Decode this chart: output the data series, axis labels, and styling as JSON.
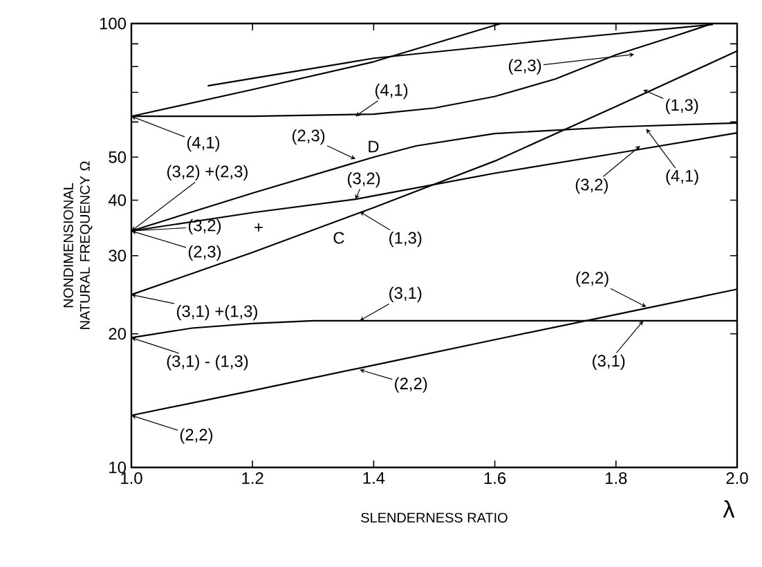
{
  "chart_data": {
    "type": "line",
    "xlabel": "SLENDERNESS RATIO",
    "ylabel": "NONDIMENSIONAL NATURAL FREQUENCY Ω",
    "log": "y",
    "grid": false,
    "xlim": [
      1.0,
      2.0
    ],
    "ylim": [
      10,
      100
    ],
    "xticks": [
      {
        "value": 1.0,
        "label": "1.0"
      },
      {
        "value": 1.2,
        "label": "1.2"
      },
      {
        "value": 1.4,
        "label": "1.4"
      },
      {
        "value": 1.6,
        "label": "1.6"
      },
      {
        "value": 1.8,
        "label": "1.8"
      },
      {
        "value": 2.0,
        "label": "2.0"
      }
    ],
    "yticks": [
      10,
      20,
      30,
      40,
      50,
      {
        "value": 60,
        "label": null
      },
      {
        "value": 70,
        "label": null
      },
      {
        "value": 80,
        "label": null
      },
      {
        "value": 90,
        "label": null
      },
      100
    ],
    "series": [
      {
        "color": "#000000",
        "x": [
          1.0,
          1.2,
          1.4,
          1.6,
          1.8,
          2.0
        ],
        "values": [
          13.1,
          14.9,
          17.0,
          19.4,
          22.1,
          25.2
        ]
      },
      {
        "color": "#000000",
        "x": [
          1.0,
          1.1,
          1.2,
          1.3,
          1.5,
          1.7,
          2.0
        ],
        "values": [
          19.6,
          20.6,
          21.1,
          21.4,
          21.4,
          21.4,
          21.4
        ]
      },
      {
        "color": "#000000",
        "x": [
          1.0,
          1.2,
          1.4,
          1.6,
          1.8,
          2.0
        ],
        "values": [
          24.5,
          30.5,
          38.5,
          49,
          65,
          86.7
        ]
      },
      {
        "color": "#000000",
        "x": [
          1.0,
          1.2,
          1.37,
          1.6,
          1.8,
          2.0
        ],
        "values": [
          34.1,
          37.5,
          40.2,
          46,
          51,
          56.7
        ]
      },
      {
        "color": "#000000",
        "x": [
          1.0,
          1.2,
          1.4,
          1.47,
          1.6,
          1.8,
          2.0
        ],
        "values": [
          34.1,
          41.5,
          50,
          53,
          56.5,
          58.5,
          59.7
        ]
      },
      {
        "color": "#000000",
        "x": [
          1.0,
          1.2,
          1.4,
          1.5,
          1.6,
          1.7,
          1.8,
          1.9,
          1.96
        ],
        "values": [
          61.8,
          61.8,
          62.5,
          64.5,
          68.5,
          75,
          85,
          94,
          100
        ]
      },
      {
        "color": "#000000",
        "x": [
          1.0,
          1.2,
          1.4,
          1.61
        ],
        "values": [
          61.8,
          71,
          82,
          100
        ]
      },
      {
        "color": "#000000",
        "x": [
          1.126,
          1.4,
          1.7,
          1.96
        ],
        "values": [
          72.4,
          83.5,
          92,
          99.5
        ]
      }
    ],
    "annotations": [
      {
        "text": "(4,1)",
        "x": 1.37,
        "y": 61.8
      },
      {
        "text": "(4,1)",
        "x": 1.0,
        "y": 61.8
      },
      {
        "text": "(2,3)",
        "x": 1.37,
        "y": 49.5
      },
      "D",
      {
        "text": "(3,2) +(2,3)",
        "x": 1.0,
        "y": 34.1
      },
      {
        "text": "(3,2)",
        "x": 1.37,
        "y": 40.2
      },
      {
        "text": "(3,2)",
        "x": 1.0,
        "y": 34.1
      },
      "+",
      {
        "text": "(2,3)",
        "x": 1.0,
        "y": 34.1
      },
      "C",
      {
        "text": "(1,3)",
        "x": 1.377,
        "y": 37.7
      },
      {
        "text": "(2,3)",
        "x": 1.83,
        "y": 85.2
      },
      {
        "text": "(1,3)",
        "x": 1.845,
        "y": 70.9
      },
      {
        "text": "(3,2)",
        "x": 1.84,
        "y": 53
      },
      {
        "text": "(4,1)",
        "x": 1.85,
        "y": 57.9
      },
      {
        "text": "(3,1) +(1,3)",
        "x": 1.0,
        "y": 24.5
      },
      {
        "text": "(3,1)",
        "x": 1.377,
        "y": 21.4
      },
      {
        "text": "(3,1) - (1,3)",
        "x": 1.0,
        "y": 19.6
      },
      {
        "text": "(2,2)",
        "x": 1.377,
        "y": 16.6
      },
      {
        "text": "(2,2)",
        "x": 1.0,
        "y": 13.1
      },
      {
        "text": "(2,2)",
        "x": 1.85,
        "y": 23.0
      },
      {
        "text": "(3,1)",
        "x": 1.845,
        "y": 21.4
      },
      "λ"
    ]
  }
}
